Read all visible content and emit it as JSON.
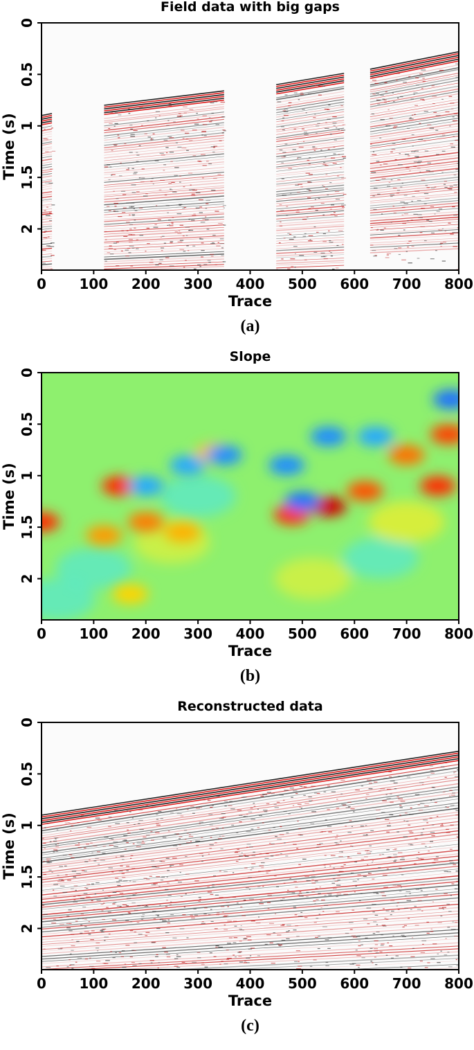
{
  "chart_data": [
    {
      "type": "heatmap",
      "title": "Field data with big gaps",
      "xlabel": "Trace",
      "ylabel": "Time (s)",
      "caption": "(a)",
      "xlim": [
        0,
        800
      ],
      "ylim": [
        2.4,
        0
      ],
      "xticks": [
        "0",
        "100",
        "200",
        "300",
        "400",
        "500",
        "600",
        "700",
        "800"
      ],
      "yticks": [
        "0",
        "0.5",
        "1",
        "1.5",
        "2"
      ],
      "colormap": "seismic-white-red-black",
      "data_blocks": [
        {
          "x": [
            0,
            20
          ],
          "first_break_time": [
            0.9,
            0.88
          ]
        },
        {
          "x": [
            120,
            350
          ],
          "first_break_time": [
            0.8,
            0.66
          ]
        },
        {
          "x": [
            450,
            580
          ],
          "first_break_time": [
            0.6,
            0.49
          ]
        },
        {
          "x": [
            630,
            800
          ],
          "first_break_time": [
            0.45,
            0.28
          ]
        }
      ],
      "gaps": [
        [
          20,
          120
        ],
        [
          350,
          450
        ],
        [
          580,
          630
        ]
      ]
    },
    {
      "type": "heatmap",
      "title": "Slope",
      "xlabel": "Trace",
      "ylabel": "Time (s)",
      "caption": "(b)",
      "xlim": [
        0,
        800
      ],
      "ylim": [
        2.4,
        0
      ],
      "xticks": [
        "0",
        "100",
        "200",
        "300",
        "400",
        "500",
        "600",
        "700",
        "800"
      ],
      "yticks": [
        "0",
        "0.5",
        "1",
        "1.5",
        "2"
      ],
      "colormap": "jet",
      "background_color": "#8ef06e",
      "blobs": [
        {
          "x": 0,
          "t": 1.45,
          "color": "#ff2a00"
        },
        {
          "x": 150,
          "t": 1.1,
          "color": "#ff2a00"
        },
        {
          "x": 120,
          "t": 1.58,
          "color": "#ff9a00"
        },
        {
          "x": 200,
          "t": 1.45,
          "color": "#ff7a00"
        },
        {
          "x": 270,
          "t": 1.55,
          "color": "#ffb000"
        },
        {
          "x": 330,
          "t": 0.78,
          "color": "#ffc000"
        },
        {
          "x": 170,
          "t": 2.15,
          "color": "#ffd400"
        },
        {
          "x": 480,
          "t": 1.38,
          "color": "#ff2a00"
        },
        {
          "x": 550,
          "t": 1.3,
          "color": "#d00000"
        },
        {
          "x": 620,
          "t": 1.15,
          "color": "#ff5000"
        },
        {
          "x": 700,
          "t": 0.8,
          "color": "#ff7000"
        },
        {
          "x": 760,
          "t": 1.1,
          "color": "#ff2a00"
        },
        {
          "x": 780,
          "t": 0.6,
          "color": "#ff4000"
        },
        {
          "x": 200,
          "t": 1.1,
          "color": "#28a8ff"
        },
        {
          "x": 280,
          "t": 0.9,
          "color": "#28a8ff"
        },
        {
          "x": 350,
          "t": 0.8,
          "color": "#1e8cff"
        },
        {
          "x": 470,
          "t": 0.9,
          "color": "#1e8cff"
        },
        {
          "x": 550,
          "t": 0.62,
          "color": "#1e8cff"
        },
        {
          "x": 500,
          "t": 1.25,
          "color": "#1e70ff"
        },
        {
          "x": 785,
          "t": 0.26,
          "color": "#1e70ff"
        },
        {
          "x": 640,
          "t": 0.62,
          "color": "#28a8ff"
        }
      ]
    },
    {
      "type": "heatmap",
      "title": "Reconstructed data",
      "xlabel": "Trace",
      "ylabel": "Time (s)",
      "caption": "(c)",
      "xlim": [
        0,
        800
      ],
      "ylim": [
        2.4,
        0
      ],
      "xticks": [
        "0",
        "100",
        "200",
        "300",
        "400",
        "500",
        "600",
        "700",
        "800"
      ],
      "yticks": [
        "0",
        "0.5",
        "1",
        "1.5",
        "2"
      ],
      "colormap": "seismic-white-red-black",
      "first_break_time": [
        {
          "x": 0,
          "t": 0.9
        },
        {
          "x": 120,
          "t": 0.8
        },
        {
          "x": 350,
          "t": 0.65
        },
        {
          "x": 450,
          "t": 0.6
        },
        {
          "x": 580,
          "t": 0.5
        },
        {
          "x": 630,
          "t": 0.46
        },
        {
          "x": 800,
          "t": 0.28
        }
      ]
    }
  ]
}
